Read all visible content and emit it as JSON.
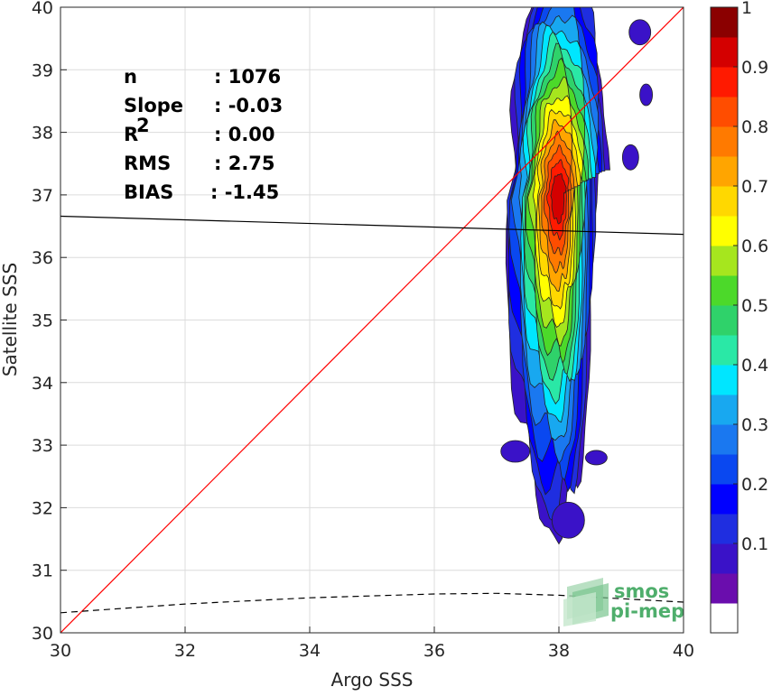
{
  "chart_data": {
    "type": "heatmap",
    "xlabel": "Argo SSS",
    "ylabel": "Satellite SSS",
    "xlim": [
      30,
      40
    ],
    "ylim": [
      30,
      40
    ],
    "xticks": [
      "30",
      "32",
      "34",
      "36",
      "38",
      "40"
    ],
    "yticks": [
      "30",
      "31",
      "32",
      "33",
      "34",
      "35",
      "36",
      "37",
      "38",
      "39",
      "40"
    ],
    "grid": true,
    "colorbar": {
      "range": [
        0,
        1
      ],
      "levels": 17,
      "ticks": [
        "0.1",
        "0.2",
        "0.3",
        "0.4",
        "0.5",
        "0.6",
        "0.7",
        "0.8",
        "0.9",
        "1"
      ],
      "colors": [
        "#ffffff",
        "#6a0dad",
        "#3a12c8",
        "#1f2ee0",
        "#0000ff",
        "#0a48f0",
        "#1a78f0",
        "#18a8f0",
        "#00e6ff",
        "#2ae8a6",
        "#2fd26a",
        "#4cd92a",
        "#a6e61e",
        "#ffff00",
        "#ffd800",
        "#ffa500",
        "#ff7a00",
        "#ff4d00",
        "#ff1a00",
        "#d40000",
        "#8b0000"
      ]
    },
    "contour_blob": {
      "center_x": 38.0,
      "center_y": 37.4,
      "x_range": [
        36.7,
        39.7
      ],
      "y_range": [
        31.6,
        40.0
      ]
    },
    "lines": [
      {
        "name": "one-to-one",
        "color": "#ff0000",
        "points": [
          [
            30,
            30
          ],
          [
            40,
            40
          ]
        ]
      },
      {
        "name": "regression",
        "color": "#000000",
        "points": [
          [
            30,
            36.66
          ],
          [
            40,
            36.37
          ]
        ]
      },
      {
        "name": "density",
        "color": "#000000",
        "style": "dashed",
        "points": [
          [
            30,
            30.32
          ],
          [
            32,
            30.46
          ],
          [
            34,
            30.56
          ],
          [
            36,
            30.62
          ],
          [
            37,
            30.63
          ],
          [
            38,
            30.6
          ],
          [
            40,
            30.49
          ]
        ]
      }
    ],
    "stats": [
      {
        "label": "n",
        "value": ": 1076"
      },
      {
        "label": "Slope",
        "value": ": -0.03"
      },
      {
        "label": "R",
        "sup": "2",
        "value": ": 0.00"
      },
      {
        "label": "RMS",
        "value": ": 2.75"
      },
      {
        "label": "BIAS",
        "value": ": -1.45"
      }
    ]
  },
  "watermark": {
    "line1": "smos",
    "line2": "pi-mep"
  }
}
